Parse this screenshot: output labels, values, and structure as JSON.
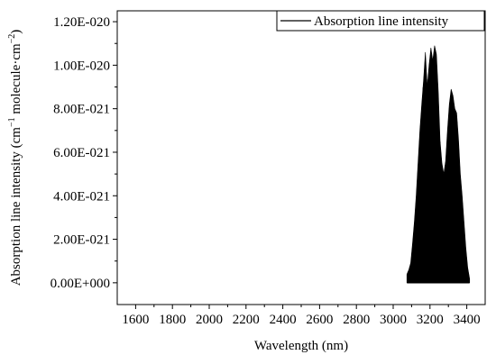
{
  "chart_data": {
    "type": "line",
    "xlabel": "Wavelength (nm)",
    "ylabel_parts": {
      "prefix": "Absorption line intensity (cm",
      "sup1": "−1",
      "middle": " molecule·cm",
      "sup2": "−2",
      "suffix": ")"
    },
    "xlim": [
      1500,
      3500
    ],
    "ylim": [
      -1e-21,
      1.25e-20
    ],
    "x_ticks": [
      1600,
      1800,
      2000,
      2200,
      2400,
      2600,
      2800,
      3000,
      3200,
      3400
    ],
    "x_tick_labels": [
      "1600",
      "1800",
      "2000",
      "2200",
      "2400",
      "2600",
      "2800",
      "3000",
      "3200",
      "3400"
    ],
    "y_ticks": [
      0,
      2e-21,
      4e-21,
      6e-21,
      8e-21,
      1e-20,
      1.2e-20
    ],
    "y_tick_labels": [
      "0.00E+000",
      "2.00E-021",
      "4.00E-021",
      "6.00E-021",
      "8.00E-021",
      "1.00E-020",
      "1.20E-020"
    ],
    "legend": {
      "position": "top-right",
      "label": "Absorption line intensity"
    },
    "grid": false,
    "series_color": "#000000",
    "envelope": {
      "x": [
        3075,
        3085,
        3095,
        3105,
        3115,
        3125,
        3135,
        3145,
        3155,
        3165,
        3175,
        3185,
        3195,
        3205,
        3215,
        3225,
        3235,
        3245,
        3255,
        3265,
        3275,
        3285,
        3295,
        3305,
        3315,
        3325,
        3335,
        3345,
        3355,
        3365,
        3375,
        3385,
        3395,
        3405,
        3415
      ],
      "y": [
        4e-22,
        6e-22,
        9e-22,
        1.8e-21,
        2.8e-21,
        4e-21,
        5.5e-21,
        7e-21,
        8.2e-21,
        9.3e-21,
        1.06e-20,
        9e-21,
        1e-20,
        1.08e-20,
        1.02e-20,
        1.09e-20,
        1.05e-20,
        8.8e-21,
        6.5e-21,
        5.5e-21,
        5e-21,
        5.6e-21,
        7e-21,
        8.2e-21,
        8.9e-21,
        8.6e-21,
        8e-21,
        7.8e-21,
        6.6e-21,
        5e-21,
        4e-21,
        2.8e-21,
        1.6e-21,
        7e-22,
        2e-22
      ]
    }
  }
}
